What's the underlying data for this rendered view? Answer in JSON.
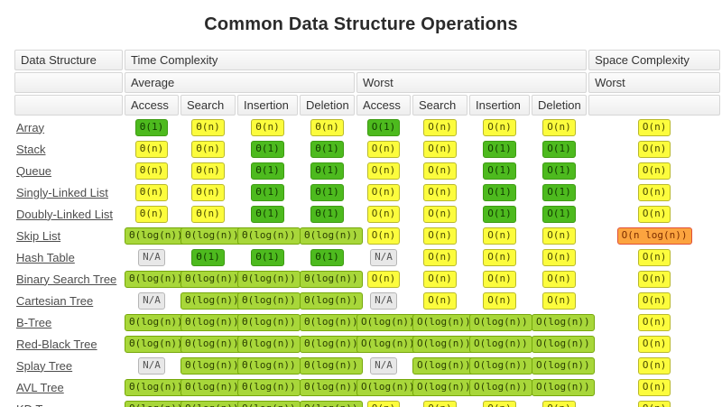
{
  "title": "Common Data Structure Operations",
  "colors": {
    "green": {
      "bg": "#4DBA1E",
      "border": "#3E9B13",
      "text": "#123D00"
    },
    "lightgreen": {
      "bg": "#A8D73A",
      "border": "#76A80B",
      "text": "#2C4100"
    },
    "yellow": {
      "bg": "#FCFC3D",
      "border": "#B9B92B",
      "text": "#4A4A00"
    },
    "orange": {
      "bg": "#FCA43F",
      "border": "#E05038",
      "text": "#7C2D00"
    },
    "gray": {
      "bg": "#E8E8E8",
      "border": "#B6B6B6",
      "text": "#555555"
    }
  },
  "table": {
    "headers": {
      "data_structure": "Data Structure",
      "time_complexity": "Time Complexity",
      "space_complexity": "Space Complexity",
      "average": "Average",
      "worst_time": "Worst",
      "worst_space": "Worst",
      "ops": [
        "Access",
        "Search",
        "Insertion",
        "Deletion",
        "Access",
        "Search",
        "Insertion",
        "Deletion"
      ]
    },
    "rows": [
      {
        "name": "Array",
        "avg": [
          [
            "Θ(1)",
            "green"
          ],
          [
            "Θ(n)",
            "yellow"
          ],
          [
            "Θ(n)",
            "yellow"
          ],
          [
            "Θ(n)",
            "yellow"
          ]
        ],
        "worst": [
          [
            "O(1)",
            "green"
          ],
          [
            "O(n)",
            "yellow"
          ],
          [
            "O(n)",
            "yellow"
          ],
          [
            "O(n)",
            "yellow"
          ]
        ],
        "space": [
          "O(n)",
          "yellow"
        ]
      },
      {
        "name": "Stack",
        "avg": [
          [
            "Θ(n)",
            "yellow"
          ],
          [
            "Θ(n)",
            "yellow"
          ],
          [
            "Θ(1)",
            "green"
          ],
          [
            "Θ(1)",
            "green"
          ]
        ],
        "worst": [
          [
            "O(n)",
            "yellow"
          ],
          [
            "O(n)",
            "yellow"
          ],
          [
            "O(1)",
            "green"
          ],
          [
            "O(1)",
            "green"
          ]
        ],
        "space": [
          "O(n)",
          "yellow"
        ]
      },
      {
        "name": "Queue",
        "avg": [
          [
            "Θ(n)",
            "yellow"
          ],
          [
            "Θ(n)",
            "yellow"
          ],
          [
            "Θ(1)",
            "green"
          ],
          [
            "Θ(1)",
            "green"
          ]
        ],
        "worst": [
          [
            "O(n)",
            "yellow"
          ],
          [
            "O(n)",
            "yellow"
          ],
          [
            "O(1)",
            "green"
          ],
          [
            "O(1)",
            "green"
          ]
        ],
        "space": [
          "O(n)",
          "yellow"
        ]
      },
      {
        "name": "Singly-Linked List",
        "avg": [
          [
            "Θ(n)",
            "yellow"
          ],
          [
            "Θ(n)",
            "yellow"
          ],
          [
            "Θ(1)",
            "green"
          ],
          [
            "Θ(1)",
            "green"
          ]
        ],
        "worst": [
          [
            "O(n)",
            "yellow"
          ],
          [
            "O(n)",
            "yellow"
          ],
          [
            "O(1)",
            "green"
          ],
          [
            "O(1)",
            "green"
          ]
        ],
        "space": [
          "O(n)",
          "yellow"
        ]
      },
      {
        "name": "Doubly-Linked List",
        "avg": [
          [
            "Θ(n)",
            "yellow"
          ],
          [
            "Θ(n)",
            "yellow"
          ],
          [
            "Θ(1)",
            "green"
          ],
          [
            "Θ(1)",
            "green"
          ]
        ],
        "worst": [
          [
            "O(n)",
            "yellow"
          ],
          [
            "O(n)",
            "yellow"
          ],
          [
            "O(1)",
            "green"
          ],
          [
            "O(1)",
            "green"
          ]
        ],
        "space": [
          "O(n)",
          "yellow"
        ]
      },
      {
        "name": "Skip List",
        "avg": [
          [
            "Θ(log(n))",
            "lightgreen"
          ],
          [
            "Θ(log(n))",
            "lightgreen"
          ],
          [
            "Θ(log(n))",
            "lightgreen"
          ],
          [
            "Θ(log(n))",
            "lightgreen"
          ]
        ],
        "worst": [
          [
            "O(n)",
            "yellow"
          ],
          [
            "O(n)",
            "yellow"
          ],
          [
            "O(n)",
            "yellow"
          ],
          [
            "O(n)",
            "yellow"
          ]
        ],
        "space": [
          "O(n log(n))",
          "orange"
        ]
      },
      {
        "name": "Hash Table",
        "avg": [
          [
            "N/A",
            "gray"
          ],
          [
            "Θ(1)",
            "green"
          ],
          [
            "Θ(1)",
            "green"
          ],
          [
            "Θ(1)",
            "green"
          ]
        ],
        "worst": [
          [
            "N/A",
            "gray"
          ],
          [
            "O(n)",
            "yellow"
          ],
          [
            "O(n)",
            "yellow"
          ],
          [
            "O(n)",
            "yellow"
          ]
        ],
        "space": [
          "O(n)",
          "yellow"
        ]
      },
      {
        "name": "Binary Search Tree",
        "avg": [
          [
            "Θ(log(n))",
            "lightgreen"
          ],
          [
            "Θ(log(n))",
            "lightgreen"
          ],
          [
            "Θ(log(n))",
            "lightgreen"
          ],
          [
            "Θ(log(n))",
            "lightgreen"
          ]
        ],
        "worst": [
          [
            "O(n)",
            "yellow"
          ],
          [
            "O(n)",
            "yellow"
          ],
          [
            "O(n)",
            "yellow"
          ],
          [
            "O(n)",
            "yellow"
          ]
        ],
        "space": [
          "O(n)",
          "yellow"
        ]
      },
      {
        "name": "Cartesian Tree",
        "avg": [
          [
            "N/A",
            "gray"
          ],
          [
            "Θ(log(n))",
            "lightgreen"
          ],
          [
            "Θ(log(n))",
            "lightgreen"
          ],
          [
            "Θ(log(n))",
            "lightgreen"
          ]
        ],
        "worst": [
          [
            "N/A",
            "gray"
          ],
          [
            "O(n)",
            "yellow"
          ],
          [
            "O(n)",
            "yellow"
          ],
          [
            "O(n)",
            "yellow"
          ]
        ],
        "space": [
          "O(n)",
          "yellow"
        ]
      },
      {
        "name": "B-Tree",
        "avg": [
          [
            "Θ(log(n))",
            "lightgreen"
          ],
          [
            "Θ(log(n))",
            "lightgreen"
          ],
          [
            "Θ(log(n))",
            "lightgreen"
          ],
          [
            "Θ(log(n))",
            "lightgreen"
          ]
        ],
        "worst": [
          [
            "O(log(n))",
            "lightgreen"
          ],
          [
            "O(log(n))",
            "lightgreen"
          ],
          [
            "O(log(n))",
            "lightgreen"
          ],
          [
            "O(log(n))",
            "lightgreen"
          ]
        ],
        "space": [
          "O(n)",
          "yellow"
        ]
      },
      {
        "name": "Red-Black Tree",
        "avg": [
          [
            "Θ(log(n))",
            "lightgreen"
          ],
          [
            "Θ(log(n))",
            "lightgreen"
          ],
          [
            "Θ(log(n))",
            "lightgreen"
          ],
          [
            "Θ(log(n))",
            "lightgreen"
          ]
        ],
        "worst": [
          [
            "O(log(n))",
            "lightgreen"
          ],
          [
            "O(log(n))",
            "lightgreen"
          ],
          [
            "O(log(n))",
            "lightgreen"
          ],
          [
            "O(log(n))",
            "lightgreen"
          ]
        ],
        "space": [
          "O(n)",
          "yellow"
        ]
      },
      {
        "name": "Splay Tree",
        "avg": [
          [
            "N/A",
            "gray"
          ],
          [
            "Θ(log(n))",
            "lightgreen"
          ],
          [
            "Θ(log(n))",
            "lightgreen"
          ],
          [
            "Θ(log(n))",
            "lightgreen"
          ]
        ],
        "worst": [
          [
            "N/A",
            "gray"
          ],
          [
            "O(log(n))",
            "lightgreen"
          ],
          [
            "O(log(n))",
            "lightgreen"
          ],
          [
            "O(log(n))",
            "lightgreen"
          ]
        ],
        "space": [
          "O(n)",
          "yellow"
        ]
      },
      {
        "name": "AVL Tree",
        "avg": [
          [
            "Θ(log(n))",
            "lightgreen"
          ],
          [
            "Θ(log(n))",
            "lightgreen"
          ],
          [
            "Θ(log(n))",
            "lightgreen"
          ],
          [
            "Θ(log(n))",
            "lightgreen"
          ]
        ],
        "worst": [
          [
            "O(log(n))",
            "lightgreen"
          ],
          [
            "O(log(n))",
            "lightgreen"
          ],
          [
            "O(log(n))",
            "lightgreen"
          ],
          [
            "O(log(n))",
            "lightgreen"
          ]
        ],
        "space": [
          "O(n)",
          "yellow"
        ]
      },
      {
        "name": "KD Tree",
        "avg": [
          [
            "Θ(log(n))",
            "lightgreen"
          ],
          [
            "Θ(log(n))",
            "lightgreen"
          ],
          [
            "Θ(log(n))",
            "lightgreen"
          ],
          [
            "Θ(log(n))",
            "lightgreen"
          ]
        ],
        "worst": [
          [
            "O(n)",
            "yellow"
          ],
          [
            "O(n)",
            "yellow"
          ],
          [
            "O(n)",
            "yellow"
          ],
          [
            "O(n)",
            "yellow"
          ]
        ],
        "space": [
          "O(n)",
          "yellow"
        ]
      }
    ]
  }
}
